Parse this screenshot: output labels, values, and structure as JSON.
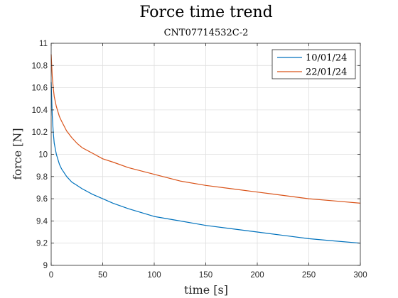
{
  "chart_data": {
    "type": "line",
    "title": "Force time trend",
    "subtitle": "CNT07714532C-2",
    "xlabel": "time [s]",
    "ylabel": "force [N]",
    "xlim": [
      0,
      300
    ],
    "ylim": [
      9,
      11
    ],
    "xticks": [
      0,
      50,
      100,
      150,
      200,
      250,
      300
    ],
    "xtick_labels": [
      "0",
      "50",
      "100",
      "150",
      "200",
      "250",
      "300"
    ],
    "yticks": [
      9,
      9.2,
      9.4,
      9.6,
      9.8,
      10,
      10.2,
      10.4,
      10.6,
      10.8,
      11
    ],
    "ytick_labels": [
      "9",
      "9.2",
      "9.4",
      "9.6",
      "9.8",
      "10",
      "10.2",
      "10.4",
      "10.6",
      "10.8",
      "11"
    ],
    "grid": true,
    "legend_position": "top-right",
    "series": [
      {
        "name": "10/01/24",
        "color": "#0072BD",
        "x": [
          0,
          1,
          2,
          3,
          5,
          8,
          10,
          15,
          20,
          25,
          30,
          40,
          50,
          60,
          75,
          100,
          125,
          150,
          175,
          200,
          225,
          250,
          275,
          300
        ],
        "y": [
          10.65,
          10.35,
          10.2,
          10.1,
          10.0,
          9.91,
          9.87,
          9.8,
          9.75,
          9.72,
          9.69,
          9.64,
          9.6,
          9.56,
          9.51,
          9.44,
          9.4,
          9.36,
          9.33,
          9.3,
          9.27,
          9.24,
          9.22,
          9.2
        ]
      },
      {
        "name": "22/01/24",
        "color": "#D95319",
        "x": [
          0,
          1,
          2,
          3,
          5,
          8,
          10,
          15,
          20,
          25,
          30,
          40,
          50,
          60,
          75,
          100,
          125,
          150,
          175,
          200,
          225,
          250,
          275,
          300
        ],
        "y": [
          10.9,
          10.7,
          10.6,
          10.52,
          10.43,
          10.34,
          10.3,
          10.21,
          10.15,
          10.1,
          10.06,
          10.01,
          9.96,
          9.93,
          9.88,
          9.82,
          9.76,
          9.72,
          9.69,
          9.66,
          9.63,
          9.6,
          9.58,
          9.56
        ]
      }
    ]
  }
}
